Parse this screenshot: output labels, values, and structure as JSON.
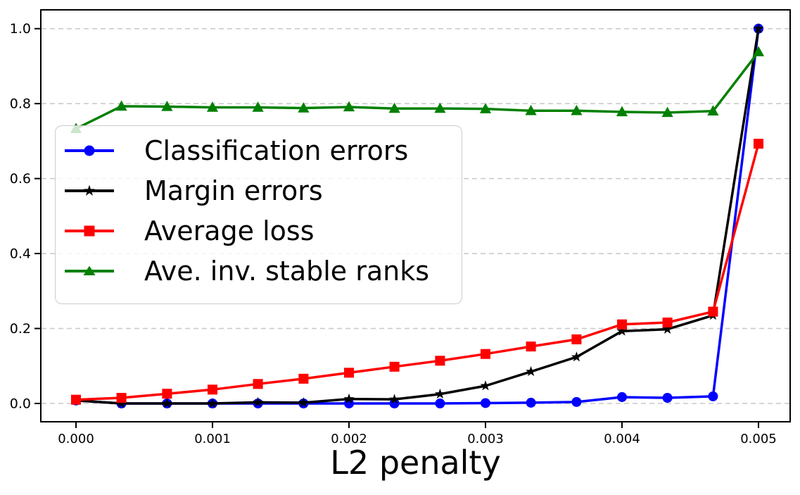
{
  "figure": {
    "background_color": "#ffffff",
    "axis_color": "#000000",
    "gridline_color": "#c8c8c8",
    "legend_background": "rgba(255,255,255,0.8)",
    "legend_border_color": "#cccccc"
  },
  "chart_data": {
    "type": "line",
    "title": "",
    "xlabel": "L2 penalty",
    "ylabel": "",
    "grid": "horizontal dashed",
    "legend_position": "upper left inside",
    "xlim": [
      -0.000258,
      0.005232
    ],
    "ylim": [
      -0.049,
      1.05
    ],
    "x_tick_labels": [
      "0.000",
      "0.001",
      "0.002",
      "0.003",
      "0.004",
      "0.005"
    ],
    "x_tick_values": [
      0,
      0.001,
      0.002,
      0.003,
      0.004,
      0.005
    ],
    "y_tick_labels": [
      "0.0",
      "0.2",
      "0.4",
      "0.6",
      "0.8",
      "1.0"
    ],
    "y_tick_values": [
      0,
      0.2,
      0.4,
      0.6,
      0.8,
      1.0
    ],
    "x": [
      0.0,
      0.000333,
      0.000667,
      0.001,
      0.001333,
      0.001667,
      0.002,
      0.002333,
      0.002667,
      0.003,
      0.003333,
      0.003667,
      0.004,
      0.004333,
      0.004667,
      0.005
    ],
    "series": [
      {
        "name": "Classification errors",
        "color": "#0000ff",
        "marker": "circle",
        "values": [
          0.008,
          0.0,
          0.0,
          0.0,
          0.0,
          0.0,
          0.0,
          0.0,
          0.0,
          0.001,
          0.002,
          0.004,
          0.017,
          0.015,
          0.019,
          1.0
        ]
      },
      {
        "name": "Margin errors",
        "color": "#000000",
        "marker": "star",
        "values": [
          0.008,
          0.0,
          0.0,
          0.0,
          0.003,
          0.002,
          0.012,
          0.011,
          0.025,
          0.047,
          0.085,
          0.124,
          0.193,
          0.198,
          0.235,
          1.0
        ]
      },
      {
        "name": "Average loss",
        "color": "#ff0000",
        "marker": "square",
        "values": [
          0.01,
          0.015,
          0.026,
          0.037,
          0.052,
          0.066,
          0.082,
          0.098,
          0.114,
          0.132,
          0.152,
          0.171,
          0.211,
          0.216,
          0.245,
          0.693
        ]
      },
      {
        "name": "Ave. inv. stable ranks",
        "color": "#008000",
        "marker": "triangle",
        "values": [
          0.733,
          0.793,
          0.792,
          0.79,
          0.79,
          0.788,
          0.791,
          0.787,
          0.787,
          0.786,
          0.781,
          0.781,
          0.778,
          0.776,
          0.78,
          0.938
        ]
      }
    ]
  }
}
